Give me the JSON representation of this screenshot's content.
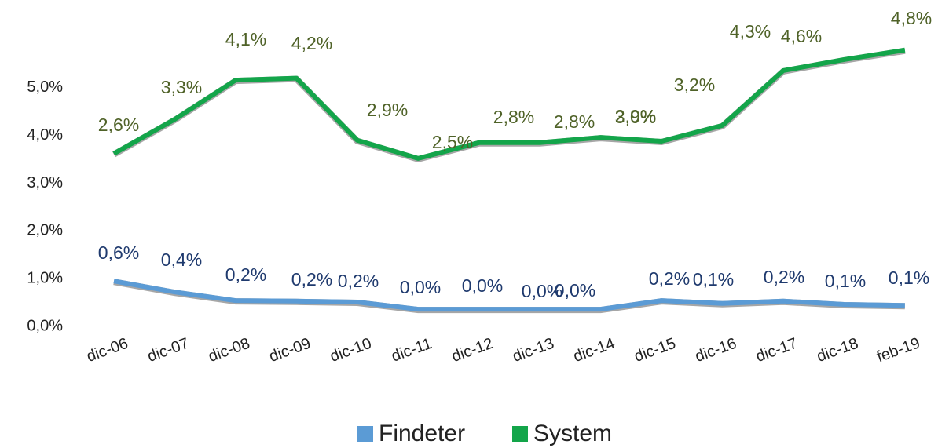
{
  "chart_data": {
    "type": "line",
    "categories": [
      "dic-06",
      "dic-07",
      "dic-08",
      "dic-09",
      "dic-10",
      "dic-11",
      "dic-12",
      "dic-13",
      "dic-14",
      "dic-15",
      "dic-16",
      "dic-17",
      "dic-18",
      "feb-19"
    ],
    "series": [
      {
        "name": "Findeter",
        "color": "#5b9bd5",
        "label_color": "#1f3a6e",
        "values": [
          0.95,
          0.72,
          0.54,
          0.53,
          0.51,
          0.36,
          0.36,
          0.36,
          0.36,
          0.54,
          0.48,
          0.53,
          0.46,
          0.44
        ],
        "point_labels": [
          "0,6%",
          "0,4%",
          "0,2%",
          "0,2%",
          "0,2%",
          "0,0%",
          "0,0%",
          "0,0%",
          "0,0%",
          "0,2%",
          "0,1%",
          "0,2%",
          "0,1%",
          "0,1%"
        ]
      },
      {
        "name": "System",
        "color": "#13a54a",
        "label_color": "#4f6228",
        "values": [
          3.62,
          4.34,
          5.16,
          5.2,
          3.9,
          3.52,
          3.85,
          3.85,
          3.96,
          3.88,
          4.21,
          5.36,
          5.59,
          5.79
        ],
        "point_labels": [
          "2,6%",
          "3,3%",
          "4,1%",
          "4,2%",
          "2,9%",
          "2,5%",
          "2,8%",
          "2,8%",
          "3,0%",
          "2,9%",
          "3,2%",
          "4,3%",
          "4,6%",
          "4,8%"
        ]
      }
    ],
    "ylim": [
      0,
      6
    ],
    "yticks": [
      {
        "value": 0,
        "label": "0,0%"
      },
      {
        "value": 1,
        "label": "1,0%"
      },
      {
        "value": 2,
        "label": "2,0%"
      },
      {
        "value": 3,
        "label": "3,0%"
      },
      {
        "value": 4,
        "label": "4,0%"
      },
      {
        "value": 5,
        "label": "5,0%"
      }
    ],
    "legend": "bottom"
  }
}
